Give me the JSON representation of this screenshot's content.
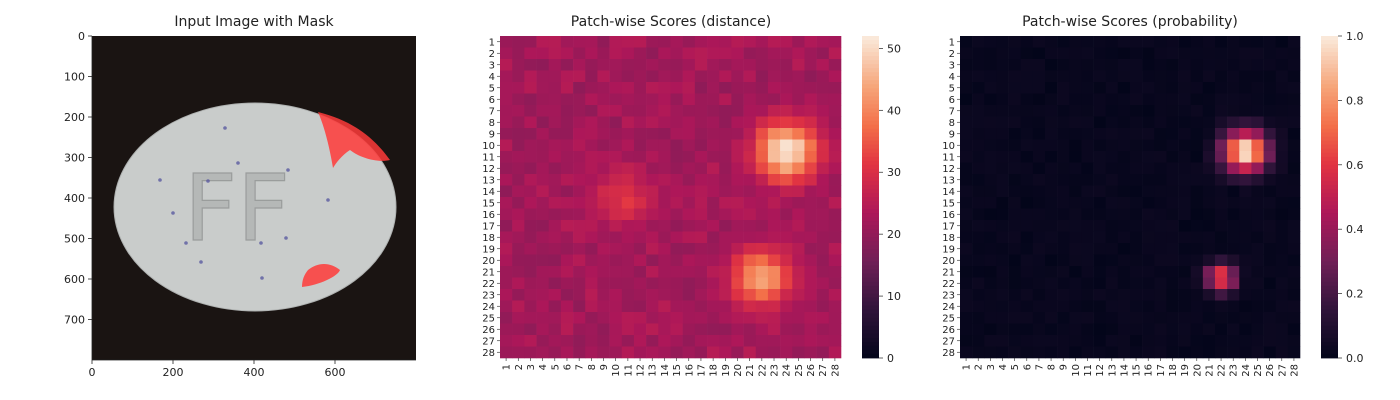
{
  "chart_data": [
    {
      "type": "image",
      "title": "Input Image with Mask",
      "xlim": [
        0,
        800
      ],
      "ylim": [
        0,
        800
      ],
      "xticks": [
        0,
        200,
        400,
        600
      ],
      "yticks": [
        0,
        100,
        200,
        300,
        400,
        500,
        600,
        700
      ],
      "colors": {
        "background": "#1a1412",
        "pill": "#c9cccb",
        "mask": "#ff3a3a",
        "speck": "#5a5aa0"
      },
      "masks": [
        {
          "region": "upper-right edge",
          "x": [
            550,
            730
          ],
          "y": [
            180,
            330
          ]
        },
        {
          "region": "lower-right edge",
          "x": [
            520,
            600
          ],
          "y": [
            560,
            640
          ]
        }
      ]
    },
    {
      "type": "heatmap",
      "title": "Patch-wise Scores (distance)",
      "grid": [
        28,
        28
      ],
      "xticklabels": [
        "1",
        "2",
        "3",
        "4",
        "5",
        "6",
        "7",
        "8",
        "9",
        "10",
        "11",
        "12",
        "13",
        "14",
        "15",
        "16",
        "17",
        "18",
        "19",
        "20",
        "21",
        "22",
        "23",
        "24",
        "25",
        "26",
        "27",
        "28"
      ],
      "yticklabels": [
        "1",
        "2",
        "3",
        "4",
        "5",
        "6",
        "7",
        "8",
        "9",
        "10",
        "11",
        "12",
        "13",
        "14",
        "15",
        "16",
        "17",
        "18",
        "19",
        "20",
        "21",
        "22",
        "23",
        "24",
        "25",
        "26",
        "27",
        "28"
      ],
      "colormap": "rocket",
      "vmin": 0,
      "vmax": 52,
      "colorbar_ticks": [
        "0",
        "10",
        "20",
        "30",
        "40",
        "50"
      ],
      "colorbar_values": [
        0,
        10,
        20,
        30,
        40,
        50
      ],
      "base_value": 21,
      "hotspots": [
        {
          "row": 10.5,
          "col": 24,
          "peak": 52
        },
        {
          "row": 21.5,
          "col": 22,
          "peak": 43
        },
        {
          "row": 14.5,
          "col": 10.5,
          "peak": 31
        }
      ]
    },
    {
      "type": "heatmap",
      "title": "Patch-wise Scores (probability)",
      "grid": [
        28,
        28
      ],
      "xticklabels": [
        "1",
        "2",
        "3",
        "4",
        "5",
        "6",
        "7",
        "8",
        "9",
        "10",
        "11",
        "12",
        "13",
        "14",
        "15",
        "16",
        "17",
        "18",
        "19",
        "20",
        "21",
        "22",
        "23",
        "24",
        "25",
        "26",
        "27",
        "28"
      ],
      "yticklabels": [
        "1",
        "2",
        "3",
        "4",
        "5",
        "6",
        "7",
        "8",
        "9",
        "10",
        "11",
        "12",
        "13",
        "14",
        "15",
        "16",
        "17",
        "18",
        "19",
        "20",
        "21",
        "22",
        "23",
        "24",
        "25",
        "26",
        "27",
        "28"
      ],
      "colormap": "rocket",
      "vmin": 0,
      "vmax": 1,
      "colorbar_ticks": [
        "0.0",
        "0.2",
        "0.4",
        "0.6",
        "0.8",
        "1.0"
      ],
      "colorbar_values": [
        0,
        0.2,
        0.4,
        0.6,
        0.8,
        1.0
      ],
      "hotspots": [
        {
          "row": 10.5,
          "col": 24,
          "peak": 1.0
        },
        {
          "row": 21.5,
          "col": 22,
          "peak": 0.65
        }
      ]
    }
  ]
}
